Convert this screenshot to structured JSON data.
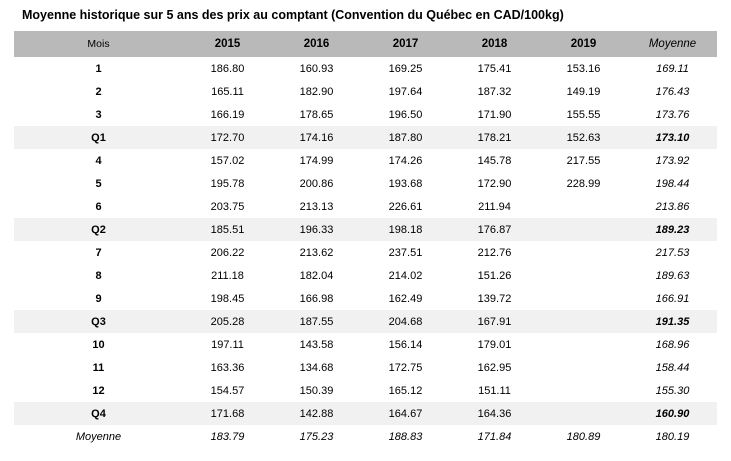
{
  "title": "Moyenne historique sur 5 ans des prix au comptant (Convention du Québec en CAD/100kg)",
  "colors": {
    "header_bg": "#b9b9b9",
    "quarter_row_bg": "#f1f1f1",
    "text": "#000000"
  },
  "chart_data": {
    "type": "table",
    "title": "Moyenne historique sur 5 ans des prix au comptant (Convention du Québec en CAD/100kg)",
    "columns": [
      "Mois",
      "2015",
      "2016",
      "2017",
      "2018",
      "2019",
      "Moyenne"
    ],
    "rows": [
      {
        "label": "1",
        "type": "month",
        "values": [
          "186.80",
          "160.93",
          "169.25",
          "175.41",
          "153.16",
          "169.11"
        ]
      },
      {
        "label": "2",
        "type": "month",
        "values": [
          "165.11",
          "182.90",
          "197.64",
          "187.32",
          "149.19",
          "176.43"
        ]
      },
      {
        "label": "3",
        "type": "month",
        "values": [
          "166.19",
          "178.65",
          "196.50",
          "171.90",
          "155.55",
          "173.76"
        ]
      },
      {
        "label": "Q1",
        "type": "quarter",
        "values": [
          "172.70",
          "174.16",
          "187.80",
          "178.21",
          "152.63",
          "173.10"
        ]
      },
      {
        "label": "4",
        "type": "month",
        "values": [
          "157.02",
          "174.99",
          "174.26",
          "145.78",
          "217.55",
          "173.92"
        ]
      },
      {
        "label": "5",
        "type": "month",
        "values": [
          "195.78",
          "200.86",
          "193.68",
          "172.90",
          "228.99",
          "198.44"
        ]
      },
      {
        "label": "6",
        "type": "month",
        "values": [
          "203.75",
          "213.13",
          "226.61",
          "211.94",
          "",
          "213.86"
        ]
      },
      {
        "label": "Q2",
        "type": "quarter",
        "values": [
          "185.51",
          "196.33",
          "198.18",
          "176.87",
          "",
          "189.23"
        ]
      },
      {
        "label": "7",
        "type": "month",
        "values": [
          "206.22",
          "213.62",
          "237.51",
          "212.76",
          "",
          "217.53"
        ]
      },
      {
        "label": "8",
        "type": "month",
        "values": [
          "211.18",
          "182.04",
          "214.02",
          "151.26",
          "",
          "189.63"
        ]
      },
      {
        "label": "9",
        "type": "month",
        "values": [
          "198.45",
          "166.98",
          "162.49",
          "139.72",
          "",
          "166.91"
        ]
      },
      {
        "label": "Q3",
        "type": "quarter",
        "values": [
          "205.28",
          "187.55",
          "204.68",
          "167.91",
          "",
          "191.35"
        ]
      },
      {
        "label": "10",
        "type": "month",
        "values": [
          "197.11",
          "143.58",
          "156.14",
          "179.01",
          "",
          "168.96"
        ]
      },
      {
        "label": "11",
        "type": "month",
        "values": [
          "163.36",
          "134.68",
          "172.75",
          "162.95",
          "",
          "158.44"
        ]
      },
      {
        "label": "12",
        "type": "month",
        "values": [
          "154.57",
          "150.39",
          "165.12",
          "151.11",
          "",
          "155.30"
        ]
      },
      {
        "label": "Q4",
        "type": "quarter",
        "values": [
          "171.68",
          "142.88",
          "164.67",
          "164.36",
          "",
          "160.90"
        ]
      },
      {
        "label": "Moyenne",
        "type": "average",
        "values": [
          "183.79",
          "175.23",
          "188.83",
          "171.84",
          "180.89",
          "180.19"
        ]
      }
    ]
  }
}
